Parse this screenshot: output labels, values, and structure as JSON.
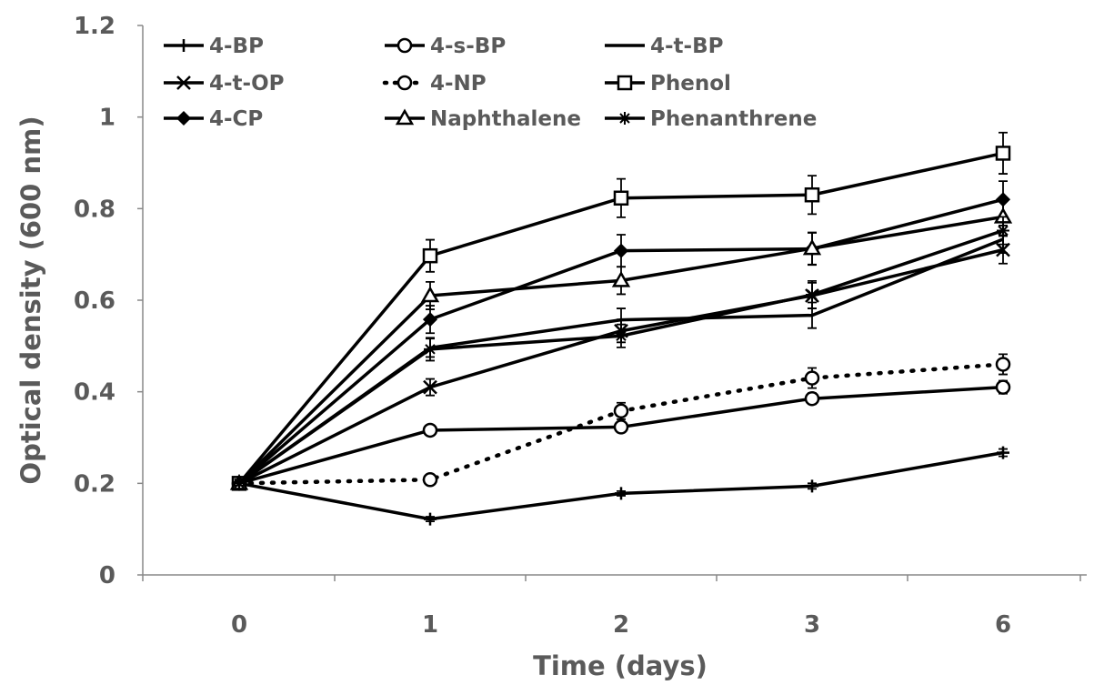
{
  "chart_data": {
    "type": "line",
    "xlabel": "Time (days)",
    "ylabel": "Optical density (600 nm)",
    "categories": [
      "0",
      "1",
      "2",
      "3",
      "6"
    ],
    "ylim": [
      0,
      1.2
    ],
    "yticks": [
      "0",
      "0.2",
      "0.4",
      "0.6",
      "0.8",
      "1",
      "1.2"
    ],
    "grid": false,
    "legend_position": "top-left",
    "line_color": "#000000",
    "series": [
      {
        "name": "4-BP",
        "marker": "plus",
        "dash": false,
        "values": [
          0.2,
          0.122,
          0.178,
          0.194,
          0.267
        ],
        "err": [
          0.005,
          0.005,
          0.005,
          0.006,
          0.008
        ]
      },
      {
        "name": "4-s-BP",
        "marker": "circle",
        "dash": false,
        "values": [
          0.2,
          0.316,
          0.323,
          0.385,
          0.41
        ],
        "err": [
          0.005,
          0.008,
          0.01,
          0.012,
          0.014
        ]
      },
      {
        "name": "4-t-BP",
        "marker": "none",
        "dash": false,
        "values": [
          0.2,
          0.496,
          0.557,
          0.567,
          0.733
        ],
        "err": [
          0.005,
          0.02,
          0.025,
          0.028,
          0.03
        ]
      },
      {
        "name": "4-t-OP",
        "marker": "x",
        "dash": false,
        "values": [
          0.2,
          0.41,
          0.533,
          0.61,
          0.71
        ],
        "err": [
          0.005,
          0.018,
          0.025,
          0.028,
          0.03
        ]
      },
      {
        "name": "4-NP",
        "marker": "circle",
        "dash": true,
        "values": [
          0.2,
          0.208,
          0.358,
          0.43,
          0.46
        ],
        "err": [
          0.005,
          0.008,
          0.018,
          0.022,
          0.022
        ]
      },
      {
        "name": "Phenol",
        "marker": "square",
        "dash": false,
        "values": [
          0.2,
          0.697,
          0.823,
          0.83,
          0.921
        ],
        "err": [
          0.012,
          0.035,
          0.042,
          0.042,
          0.045
        ]
      },
      {
        "name": "4-CP",
        "marker": "diamond",
        "dash": false,
        "values": [
          0.2,
          0.558,
          0.708,
          0.712,
          0.82
        ],
        "err": [
          0.005,
          0.03,
          0.035,
          0.035,
          0.04
        ]
      },
      {
        "name": "Naphthalene",
        "marker": "triangle",
        "dash": false,
        "values": [
          0.2,
          0.61,
          0.643,
          0.713,
          0.782
        ],
        "err": [
          0.005,
          0.03,
          0.03,
          0.035,
          0.04
        ]
      },
      {
        "name": "Phenanthrene",
        "marker": "asterisk",
        "dash": false,
        "values": [
          0.2,
          0.493,
          0.522,
          0.612,
          0.752
        ],
        "err": [
          0.005,
          0.025,
          0.025,
          0.03,
          0.03
        ]
      }
    ]
  }
}
